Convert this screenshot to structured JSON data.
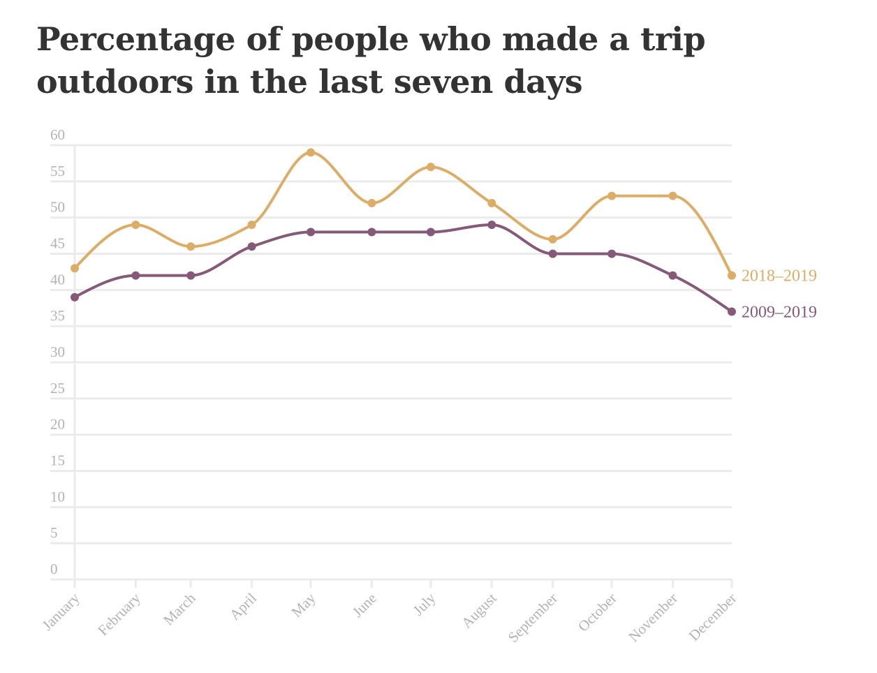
{
  "chart_data": {
    "type": "line",
    "title": "Percentage of people who made a trip outdoors in the last seven days",
    "categories": [
      "January",
      "February",
      "March",
      "April",
      "May",
      "June",
      "July",
      "August",
      "September",
      "October",
      "November",
      "December"
    ],
    "series": [
      {
        "name": "2018-2019",
        "color": "#dbad67",
        "values": [
          43,
          49,
          46,
          49,
          59,
          52,
          57,
          52,
          47,
          53,
          53,
          42
        ]
      },
      {
        "name": "2009-2019",
        "color": "#855a78",
        "values": [
          39,
          42,
          42,
          46,
          48,
          48,
          48,
          49,
          45,
          45,
          42,
          37
        ]
      }
    ],
    "yticks": [
      "0",
      "5",
      "10",
      "15",
      "20",
      "25",
      "30",
      "35",
      "40",
      "45",
      "50",
      "55",
      "60"
    ],
    "ylim": [
      0,
      60
    ],
    "grid": true,
    "legend": "inline-right",
    "xlabel": "",
    "ylabel": ""
  }
}
